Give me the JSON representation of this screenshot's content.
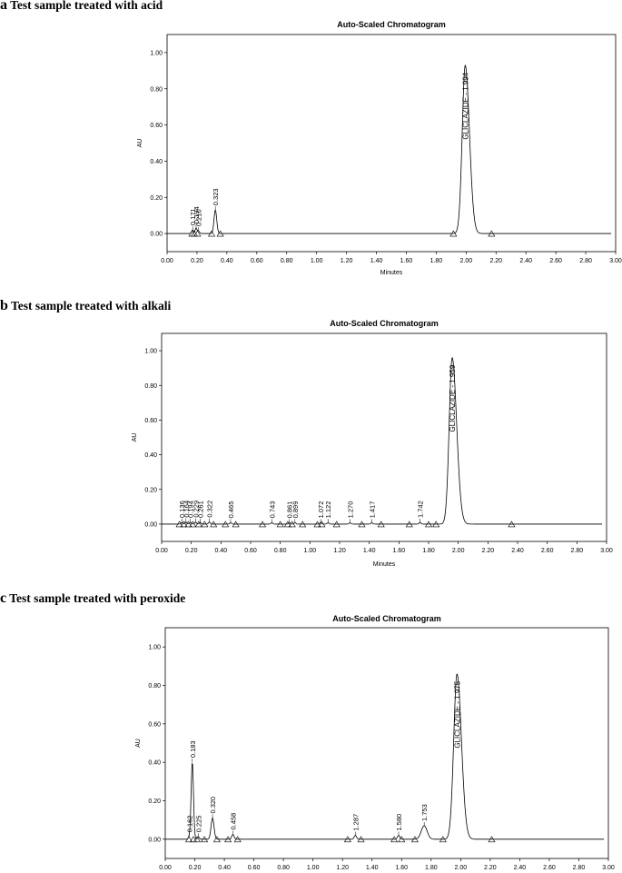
{
  "chart_data": [
    {
      "type": "line",
      "panel_letter": "a",
      "panel_caption": "Test sample treated with acid",
      "title": "Auto-Scaled Chromatogram",
      "xlabel": "Minutes",
      "ylabel": "AU",
      "xlim": [
        0,
        3.0
      ],
      "ylim": [
        -0.1,
        1.1
      ],
      "xticks": [
        "0.00",
        "0.20",
        "0.40",
        "0.60",
        "0.80",
        "1.00",
        "1.20",
        "1.40",
        "1.60",
        "1.80",
        "2.00",
        "2.20",
        "2.40",
        "2.60",
        "2.80",
        "3.00"
      ],
      "yticks": [
        "0.00",
        "0.20",
        "0.40",
        "0.60",
        "0.80",
        "1.00"
      ],
      "grid": false,
      "peaks": [
        {
          "rt": 0.171,
          "label": "0.171",
          "height": 0.02,
          "width": 0.006
        },
        {
          "rt": 0.194,
          "label": "0.194",
          "height": 0.03,
          "width": 0.006
        },
        {
          "rt": 0.21,
          "label": "0.210",
          "height": 0.015,
          "width": 0.006
        },
        {
          "rt": 0.323,
          "label": "0.323",
          "height": 0.13,
          "width": 0.009
        },
        {
          "rt": 1.994,
          "label": "GLICLAZIDE - 1.994",
          "height": 0.93,
          "width": 0.02,
          "tail": 0.028
        }
      ],
      "markers": [
        0.167,
        0.182,
        0.203,
        0.298,
        0.356,
        1.915,
        2.17
      ]
    },
    {
      "type": "line",
      "panel_letter": "b",
      "panel_caption": "Test sample treated with alkali",
      "title": "Auto-Scaled Chromatogram",
      "xlabel": "Minutes",
      "ylabel": "AU",
      "xlim": [
        0,
        3.0
      ],
      "ylim": [
        -0.1,
        1.1
      ],
      "xticks": [
        "0.00",
        "0.20",
        "0.40",
        "0.60",
        "0.80",
        "1.00",
        "1.20",
        "1.40",
        "1.60",
        "1.80",
        "2.00",
        "2.20",
        "2.40",
        "2.60",
        "2.80",
        "3.00"
      ],
      "yticks": [
        "0.00",
        "0.20",
        "0.40",
        "0.60",
        "0.80",
        "1.00"
      ],
      "grid": false,
      "peaks": [
        {
          "rt": 0.136,
          "label": "0.136",
          "height": 0.01,
          "width": 0.006
        },
        {
          "rt": 0.164,
          "label": "0.164",
          "height": 0.012,
          "width": 0.006
        },
        {
          "rt": 0.194,
          "label": "0.194",
          "height": 0.01,
          "width": 0.006
        },
        {
          "rt": 0.229,
          "label": "0.229",
          "height": 0.012,
          "width": 0.006
        },
        {
          "rt": 0.261,
          "label": "0.261",
          "height": 0.01,
          "width": 0.006
        },
        {
          "rt": 0.322,
          "label": "0.322",
          "height": 0.012,
          "width": 0.006
        },
        {
          "rt": 0.465,
          "label": "0.465",
          "height": 0.008,
          "width": 0.006
        },
        {
          "rt": 0.743,
          "label": "0.743",
          "height": 0.008,
          "width": 0.006
        },
        {
          "rt": 0.861,
          "label": "0.861",
          "height": 0.008,
          "width": 0.006
        },
        {
          "rt": 0.899,
          "label": "0.899",
          "height": 0.008,
          "width": 0.006
        },
        {
          "rt": 1.072,
          "label": "1.072",
          "height": 0.008,
          "width": 0.006
        },
        {
          "rt": 1.122,
          "label": "1.122",
          "height": 0.008,
          "width": 0.006
        },
        {
          "rt": 1.27,
          "label": "1.270",
          "height": 0.008,
          "width": 0.006
        },
        {
          "rt": 1.417,
          "label": "1.417",
          "height": 0.008,
          "width": 0.006
        },
        {
          "rt": 1.742,
          "label": "1.742",
          "height": 0.01,
          "width": 0.006
        },
        {
          "rt": 1.959,
          "label": "GLICLAZIDE - 1.959",
          "height": 0.96,
          "width": 0.02,
          "tail": 0.03
        }
      ],
      "markers": [
        0.12,
        0.15,
        0.18,
        0.21,
        0.25,
        0.29,
        0.35,
        0.43,
        0.5,
        0.68,
        0.8,
        0.85,
        0.88,
        0.95,
        1.05,
        1.08,
        1.18,
        1.35,
        1.48,
        1.67,
        1.8,
        1.85,
        2.36
      ]
    },
    {
      "type": "line",
      "panel_letter": "c",
      "panel_caption": "Test sample treated with peroxide",
      "title": "Auto-Scaled Chromatogram",
      "xlabel": "Minutes",
      "ylabel": "AU",
      "xlim": [
        0,
        3.0
      ],
      "ylim": [
        -0.1,
        1.1
      ],
      "xticks": [
        "0.00",
        "0.20",
        "0.40",
        "0.60",
        "0.80",
        "1.00",
        "1.20",
        "1.40",
        "1.60",
        "1.80",
        "2.00",
        "2.20",
        "2.40",
        "2.60",
        "2.80",
        "3.00"
      ],
      "yticks": [
        "0.00",
        "0.20",
        "0.40",
        "0.60",
        "0.80",
        "1.00"
      ],
      "grid": false,
      "peaks": [
        {
          "rt": 0.162,
          "label": "0.162",
          "height": 0.012,
          "width": 0.006
        },
        {
          "rt": 0.183,
          "label": "0.183",
          "height": 0.4,
          "width": 0.008
        },
        {
          "rt": 0.225,
          "label": "0.225",
          "height": 0.012,
          "width": 0.006
        },
        {
          "rt": 0.32,
          "label": "0.320",
          "height": 0.11,
          "width": 0.01
        },
        {
          "rt": 0.458,
          "label": "0.458",
          "height": 0.025,
          "width": 0.008
        },
        {
          "rt": 1.287,
          "label": "1.287",
          "height": 0.02,
          "width": 0.008
        },
        {
          "rt": 1.58,
          "label": "1.580",
          "height": 0.02,
          "width": 0.008
        },
        {
          "rt": 1.753,
          "label": "1.753",
          "height": 0.07,
          "width": 0.02
        },
        {
          "rt": 1.975,
          "label": "GLICLAZIDE - 1.975",
          "height": 0.86,
          "width": 0.022,
          "tail": 0.03
        }
      ],
      "markers": [
        0.16,
        0.19,
        0.215,
        0.265,
        0.35,
        0.425,
        0.49,
        1.235,
        1.325,
        1.55,
        1.6,
        1.69,
        1.88,
        2.21
      ]
    }
  ]
}
